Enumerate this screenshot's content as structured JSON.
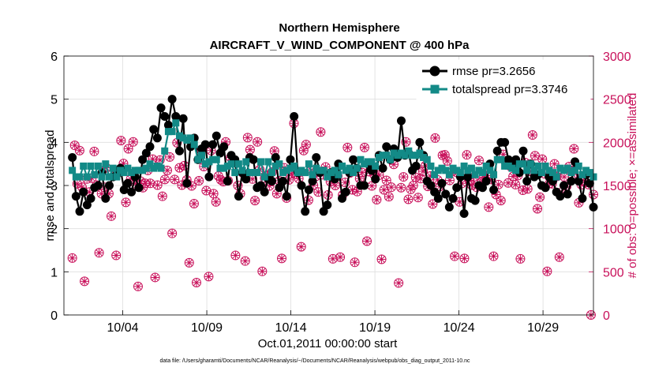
{
  "chart_data": {
    "type": "line",
    "title": "Northern Hemisphere",
    "subtitle": "AIRCRAFT_V_WIND_COMPONENT @ 400 hPa",
    "xlabel": "Oct.01,2011 00:00:00 start",
    "ylabel_left": "rmse and totalspread",
    "ylabel_right": "# of obs: o=possible; ×=assimilated",
    "footnote": "data file: /Users/gharamti/Documents/NCAR/Reanalysis/~/Documents/NCAR/Reanalysis/webpub/obs_diag_output_2011-10.nc",
    "xlim": [
      0.5,
      32
    ],
    "ylim_left": [
      0,
      6
    ],
    "ylim_right": [
      0,
      3000
    ],
    "xticks": [
      4,
      9,
      14,
      19,
      24,
      29
    ],
    "xtick_labels": [
      "10/04",
      "10/09",
      "10/14",
      "10/19",
      "10/24",
      "10/29"
    ],
    "yticks_left": [
      "0",
      "1",
      "2",
      "3",
      "4",
      "5",
      "6"
    ],
    "yticks_right": [
      "0",
      "500",
      "1000",
      "1500",
      "2000",
      "2500",
      "3000"
    ],
    "grid": true,
    "legend_location": "top-right",
    "colors": {
      "rmse": "#000000",
      "spread": "#138a87",
      "obs": "#c8105a",
      "grid": "#dddddd"
    },
    "series": [
      {
        "name": "rmse pr=3.2656",
        "axis": "left",
        "marker": "circle",
        "values": [
          3.65,
          2.75,
          2.4,
          2.85,
          2.55,
          2.7,
          2.95,
          3.0,
          3.3,
          2.7,
          3.0,
          3.2,
          3.25,
          3.4,
          2.9,
          3.05,
          2.85,
          3.2,
          2.95,
          3.6,
          3.75,
          3.9,
          4.3,
          4.1,
          4.8,
          4.6,
          4.4,
          5.0,
          4.6,
          3.8,
          4.55,
          3.05,
          3.9,
          4.1,
          3.6,
          3.85,
          3.95,
          3.2,
          3.95,
          4.15,
          3.75,
          3.9,
          3.1,
          3.7,
          3.6,
          2.75,
          3.3,
          3.15,
          3.65,
          3.6,
          2.95,
          3.0,
          2.85,
          3.15,
          3.1,
          3.65,
          2.95,
          3.1,
          2.75,
          3.6,
          4.6,
          3.3,
          3.0,
          2.4,
          2.9,
          3.1,
          3.65,
          3.3,
          2.4,
          2.55,
          3.3,
          3.15,
          3.5,
          2.7,
          2.85,
          3.3,
          3.6,
          3.4,
          3.0,
          3.0,
          3.5,
          3.35,
          3.15,
          3.7,
          3.4,
          3.9,
          3.6,
          3.85,
          3.65,
          4.5,
          3.7,
          3.75,
          3.35,
          3.45,
          4.0,
          3.7,
          3.1,
          3.0,
          2.85,
          2.7,
          3.05,
          2.8,
          2.5,
          2.7,
          2.95,
          3.2,
          2.35,
          3.2,
          2.7,
          2.65,
          3.0,
          2.95,
          3.1,
          3.5,
          2.9,
          3.8,
          4.0,
          4.0,
          3.6,
          3.45,
          3.6,
          3.3,
          3.8,
          3.1,
          3.5,
          3.2,
          3.25,
          3.0,
          2.95,
          3.2,
          3.1,
          2.85,
          2.75,
          3.0,
          2.8,
          3.1,
          3.55,
          3.1,
          2.7,
          3.25,
          3.05,
          2.5
        ]
      },
      {
        "name": "totalspread pr=3.3746",
        "axis": "left",
        "marker": "square",
        "values": [
          3.35,
          3.2,
          3.2,
          3.45,
          3.2,
          3.45,
          3.25,
          3.45,
          3.2,
          3.5,
          3.2,
          3.4,
          3.2,
          3.35,
          3.3,
          3.4,
          3.3,
          3.35,
          3.35,
          3.35,
          3.4,
          3.5,
          3.4,
          3.45,
          3.4,
          3.8,
          4.25,
          4.25,
          4.45,
          4.15,
          4.1,
          4.05,
          4.1,
          3.95,
          3.6,
          3.7,
          3.5,
          3.55,
          3.6,
          3.6,
          3.4,
          3.4,
          3.45,
          3.5,
          3.3,
          3.5,
          3.35,
          3.55,
          3.3,
          3.3,
          3.3,
          3.55,
          3.2,
          3.55,
          3.3,
          3.45,
          3.5,
          3.3,
          3.35,
          3.4,
          3.45,
          3.3,
          3.35,
          3.3,
          3.5,
          3.25,
          3.4,
          3.35,
          3.35,
          3.2,
          3.3,
          3.35,
          3.25,
          3.45,
          3.35,
          3.4,
          3.3,
          3.4,
          3.6,
          3.5,
          3.55,
          3.55,
          3.45,
          3.65,
          3.7,
          3.7,
          3.6,
          3.75,
          3.7,
          3.75,
          3.7,
          3.8,
          3.7,
          3.7,
          3.75,
          3.65,
          3.6,
          3.45,
          3.25,
          3.35,
          3.4,
          3.35,
          3.25,
          3.4,
          3.35,
          3.3,
          3.45,
          3.35,
          3.4,
          3.25,
          3.35,
          3.3,
          3.45,
          3.35,
          3.25,
          3.6,
          3.6,
          3.45,
          3.45,
          3.4,
          3.35,
          3.5,
          3.5,
          3.35,
          3.5,
          3.35,
          3.45,
          3.3,
          3.45,
          3.35,
          3.3,
          3.2,
          3.4,
          3.35,
          3.4,
          3.3,
          3.35,
          3.45,
          3.25,
          3.35,
          3.3,
          3.2
        ]
      },
      {
        "name": "obs possible",
        "axis": "right",
        "marker": "o",
        "values": [
          660,
          1965,
          1520,
          1905,
          1480,
          390,
          1575,
          1425,
          1585,
          1895,
          1505,
          720,
          1405,
          1480,
          1705,
          1405,
          1145,
          1610,
          690,
          1660,
          2020,
          1755,
          1305,
          1925,
          1575,
          2005,
          1520,
          330,
          1550,
          1475,
          1525,
          1675,
          1525,
          1805,
          435,
          1505,
          1795,
          1375,
          1570,
          1675,
          1830,
          945,
          1570,
          1995,
          1705,
          1505,
          1730,
          1565,
          605,
          1495,
          1290,
          375,
          1555,
          1915,
          1720,
          1440,
          445,
          1905,
          1405,
          1310,
          1610,
          1565,
          1545,
          2005,
          1555,
          1825,
          1795,
          690,
          1500,
          1405,
          1645,
          625,
          2055,
          1915,
          1575,
          1325,
          2005,
          1685,
          505,
          1585,
          1620,
          1495,
          1655,
          1900,
          1405,
          1555,
          655,
          1705,
          1355,
          1565,
          1635,
          2220,
          1630,
          1580,
          790,
          1905,
          1975,
          1330,
          1675,
          1505,
          1605,
          1425,
          2120,
          1625,
          1715,
          1390,
          1545,
          650,
          1500,
          1610,
          670,
          1390,
          1535,
          1940,
          1645,
          1450,
          610,
          1430,
          1580,
          1650,
          1940,
          855,
          1660,
          1495,
          1625,
          1335,
          1620,
          645,
          1450,
          1560,
          1370,
          1480,
          1745,
          1870,
          370,
          1475,
          1600,
          2005,
          1340,
          1455,
          1500,
          1595,
          1360,
          1580,
          1665,
          1730,
          1490,
          1610,
          1285,
          2050,
          1565,
          1490,
          1850,
          1855,
          1785,
          1560,
          1660,
          680,
          1650,
          1310,
          1525,
          655,
          1855,
          1560,
          1505,
          1600,
          1480,
          1790,
          1535,
          1595,
          1615,
          1250,
          1570,
          680,
          1395,
          1510,
          1325,
          1860,
          1770,
          1530,
          1720,
          1605,
          1510,
          1615,
          650,
          1445,
          1765,
          1460,
          1665,
          2085,
          1845,
          1230,
          1365,
          1805,
          1635,
          505,
          1525,
          1520,
          1750,
          1605,
          670,
          1425,
          1600,
          1490,
          1720,
          1675,
          1925,
          1580,
          1300,
          1510,
          1610,
          1535,
          1510,
          0,
          1395
        ]
      },
      {
        "name": "obs assimilated",
        "axis": "right",
        "marker": "asterisk",
        "values": [
          660,
          1965,
          1520,
          1905,
          1480,
          390,
          1575,
          1425,
          1585,
          1895,
          1505,
          720,
          1405,
          1480,
          1705,
          1405,
          1145,
          1610,
          690,
          1660,
          2020,
          1755,
          1305,
          1925,
          1575,
          2005,
          1520,
          330,
          1550,
          1475,
          1525,
          1675,
          1525,
          1805,
          435,
          1505,
          1795,
          1375,
          1570,
          1675,
          1830,
          945,
          1570,
          1995,
          1705,
          1505,
          1730,
          1565,
          605,
          1495,
          1290,
          375,
          1555,
          1915,
          1720,
          1440,
          445,
          1905,
          1405,
          1310,
          1610,
          1565,
          1545,
          2005,
          1555,
          1825,
          1795,
          690,
          1500,
          1405,
          1645,
          625,
          2055,
          1915,
          1575,
          1325,
          2005,
          1685,
          505,
          1585,
          1620,
          1495,
          1655,
          1900,
          1405,
          1555,
          655,
          1705,
          1355,
          1565,
          1635,
          2220,
          1630,
          1580,
          790,
          1905,
          1975,
          1330,
          1675,
          1505,
          1605,
          1425,
          2120,
          1625,
          1715,
          1390,
          1545,
          650,
          1500,
          1610,
          670,
          1390,
          1535,
          1940,
          1645,
          1450,
          610,
          1430,
          1580,
          1650,
          1940,
          855,
          1660,
          1495,
          1625,
          1335,
          1620,
          645,
          1450,
          1560,
          1370,
          1480,
          1745,
          1870,
          370,
          1475,
          1600,
          2005,
          1340,
          1455,
          1500,
          1595,
          1360,
          1580,
          1665,
          1730,
          1490,
          1610,
          1285,
          2050,
          1565,
          1490,
          1850,
          1855,
          1785,
          1560,
          1660,
          680,
          1650,
          1310,
          1525,
          655,
          1855,
          1560,
          1505,
          1600,
          1480,
          1790,
          1535,
          1595,
          1615,
          1250,
          1570,
          680,
          1395,
          1510,
          1325,
          1860,
          1770,
          1530,
          1720,
          1605,
          1510,
          1615,
          650,
          1445,
          1765,
          1460,
          1665,
          2085,
          1845,
          1230,
          1365,
          1805,
          1635,
          505,
          1525,
          1520,
          1750,
          1605,
          670,
          1425,
          1600,
          1490,
          1720,
          1675,
          1925,
          1580,
          1300,
          1510,
          1610,
          1535,
          1510,
          0,
          1395
        ]
      }
    ]
  }
}
